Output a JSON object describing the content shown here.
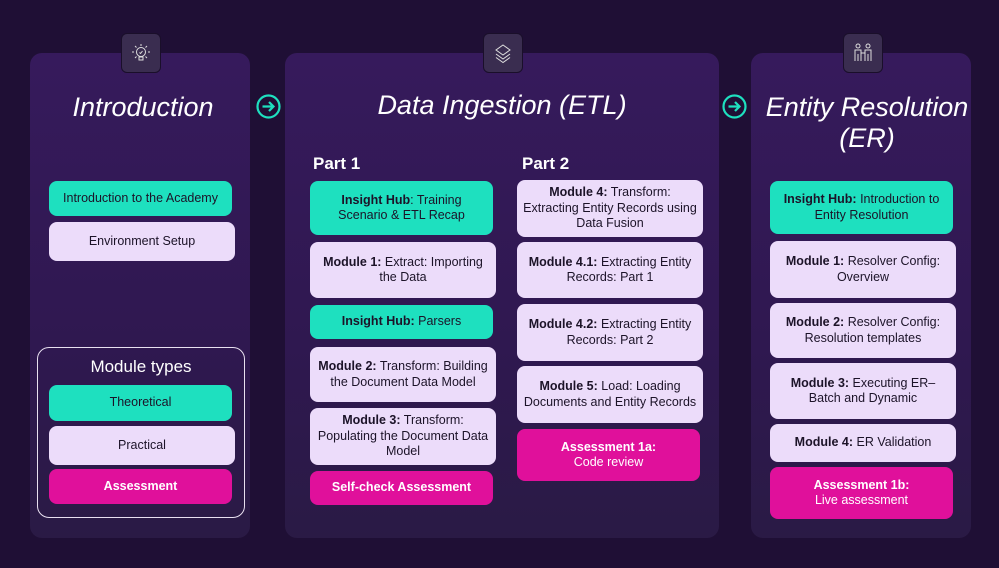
{
  "colors": {
    "background": "#1f0f35",
    "theoretical": "#1ee0bf",
    "practical": "#ecdcfa",
    "assessment": "#e0109b",
    "arrow": "#1ee0bf"
  },
  "intro": {
    "icon": "lightbulb-icon",
    "title": "Introduction",
    "items": [
      {
        "type": "theoretical",
        "text": "Introduction to the Academy"
      },
      {
        "type": "practical",
        "text": "Environment Setup"
      }
    ],
    "legend": {
      "title": "Module types",
      "items": [
        "Theoretical",
        "Practical",
        "Assessment"
      ]
    }
  },
  "etl": {
    "icon": "layers-icon",
    "title": "Data Ingestion (ETL)",
    "part1_label": "Part 1",
    "part2_label": "Part 2",
    "part1": [
      {
        "type": "theoretical",
        "bold": "Insight Hub",
        "text": ": Training Scenario & ETL Recap"
      },
      {
        "type": "practical",
        "bold": "Module 1:",
        "text": " Extract: Importing the Data"
      },
      {
        "type": "theoretical",
        "bold": "Insight Hub:",
        "text": " Parsers"
      },
      {
        "type": "practical",
        "bold": "Module 2:",
        "text": " Transform: Building the Document Data Model"
      },
      {
        "type": "practical",
        "bold": "Module 3:",
        "text": " Transform: Populating the Document Data Model"
      },
      {
        "type": "assessment",
        "bold": "Self-check Assessment",
        "text": ""
      }
    ],
    "part2": [
      {
        "type": "practical",
        "bold": "Module 4:",
        "text": " Transform: Extracting Entity Records using Data Fusion"
      },
      {
        "type": "practical",
        "bold": "Module 4.1:",
        "text": " Extracting Entity Records: Part 1"
      },
      {
        "type": "practical",
        "bold": "Module 4.2:",
        "text": " Extracting Entity Records: Part 2"
      },
      {
        "type": "practical",
        "bold": "Module 5:",
        "text": " Load: Loading Documents and Entity Records"
      },
      {
        "type": "assessment",
        "bold": "Assessment 1a:",
        "text": "Code review"
      }
    ]
  },
  "er": {
    "icon": "people-icon",
    "title": "Entity Resolution (ER)",
    "items": [
      {
        "type": "theoretical",
        "bold": "Insight Hub:",
        "text": " Introduction to Entity Resolution"
      },
      {
        "type": "practical",
        "bold": "Module 1:",
        "text": " Resolver Config: Overview"
      },
      {
        "type": "practical",
        "bold": "Module 2:",
        "text": " Resolver Config: Resolution templates"
      },
      {
        "type": "practical",
        "bold": "Module 3:",
        "text": " Executing ER– Batch and Dynamic"
      },
      {
        "type": "practical",
        "bold": "Module 4:",
        "text": " ER Validation"
      },
      {
        "type": "assessment",
        "bold": "Assessment 1b:",
        "text": "Live assessment"
      }
    ]
  }
}
